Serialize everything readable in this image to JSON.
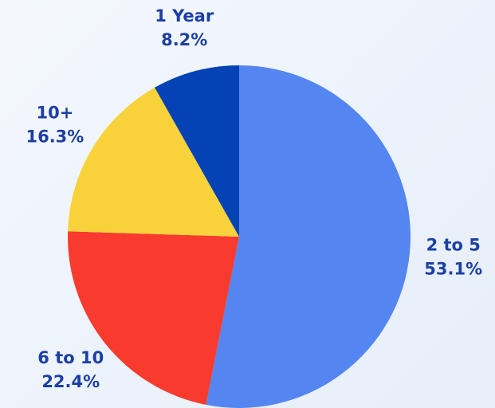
{
  "chart_data": {
    "type": "pie",
    "categories": [
      "2 to 5",
      "6 to 10",
      "10+",
      "1 Year"
    ],
    "values": [
      53.1,
      22.4,
      16.3,
      8.2
    ],
    "value_labels": [
      "53.1%",
      "22.4%",
      "16.3%",
      "8.2%"
    ],
    "colors": [
      "#5585f0",
      "#f93a2e",
      "#f8d23a",
      "#0443b4"
    ]
  }
}
